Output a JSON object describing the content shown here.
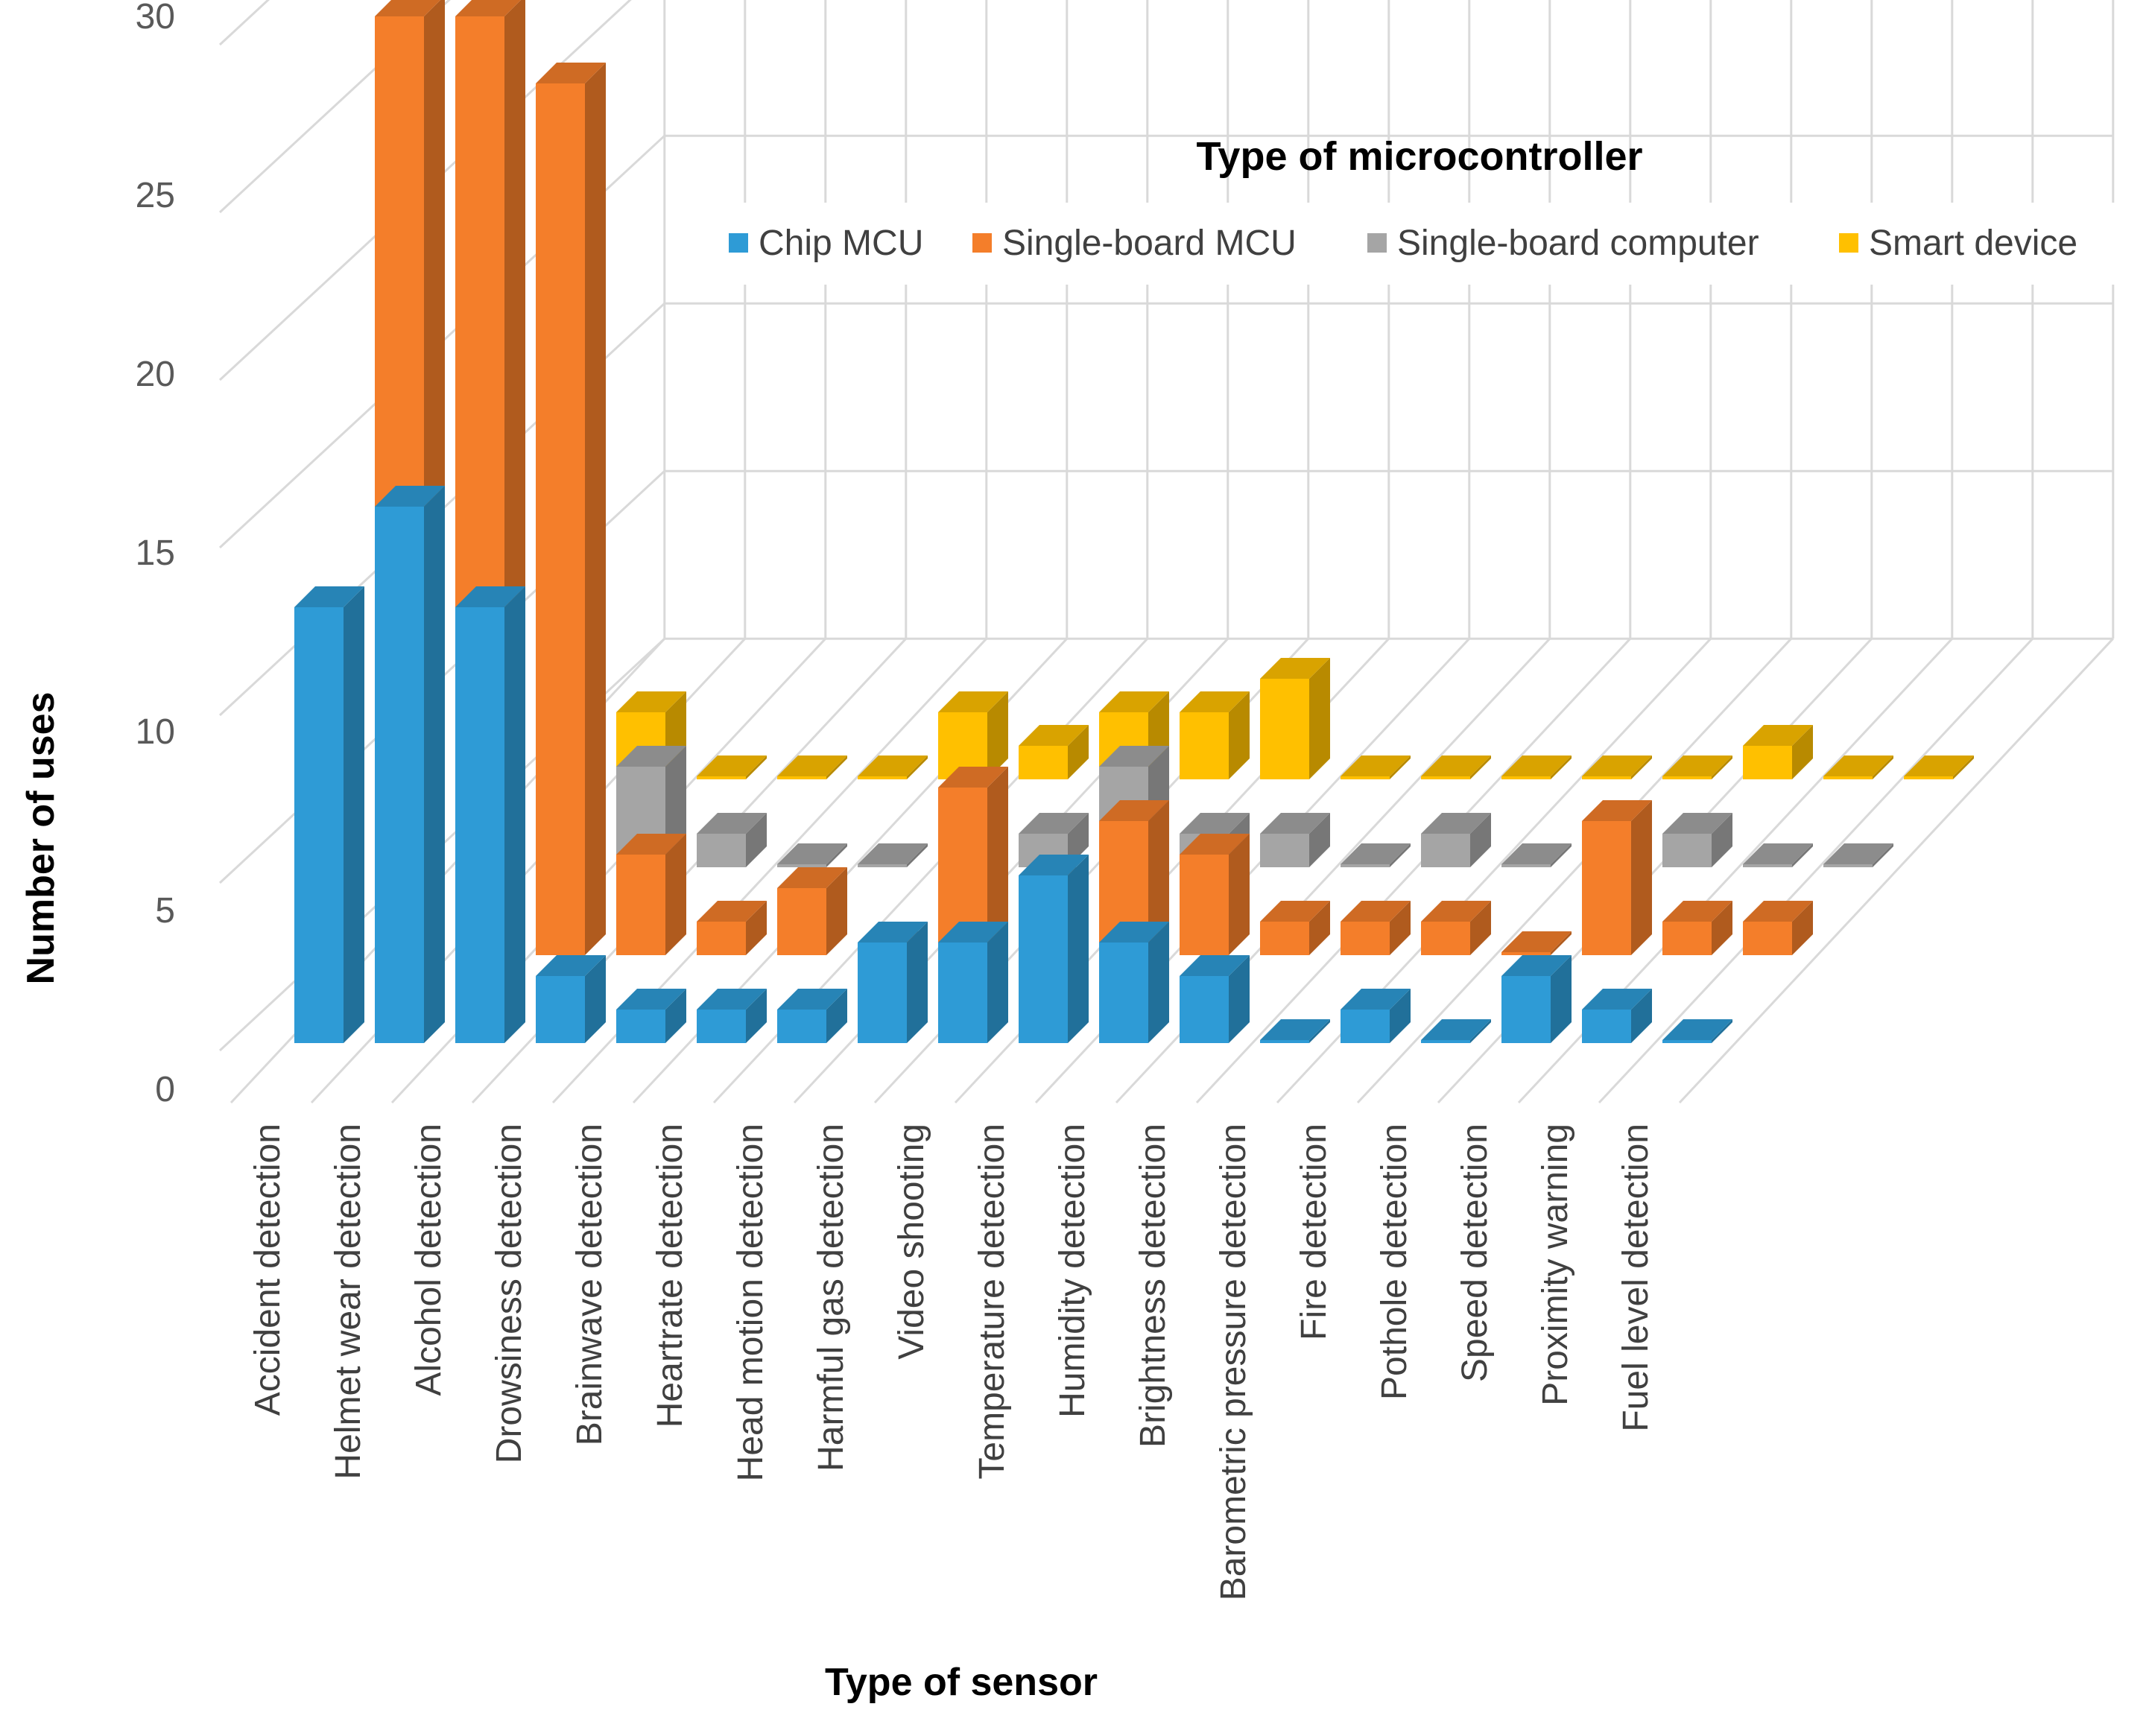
{
  "chart_data": {
    "type": "bar",
    "subtype": "3d-column",
    "title": "",
    "xlabel": "Type of sensor",
    "ylabel": "Number of uses",
    "ylim": [
      0,
      30
    ],
    "yticks": [
      0,
      5,
      10,
      15,
      20,
      25,
      30
    ],
    "grid": true,
    "legend": {
      "title": "Type of microcontroller",
      "position": "top-right"
    },
    "categories": [
      "Accident detection",
      "Helmet wear detection",
      "Alcohol detection",
      "Drowsiness detection",
      "Brainwave detection",
      "Heartrate detection",
      "Head motion detection",
      "Harmful gas detection",
      "Video shooting",
      "Temperature detection",
      "Humidity detection",
      "Brightness detection",
      "Barometric pressure detection",
      "Fire detection",
      "Pothole detection",
      "Speed detection",
      "Proximity warning",
      "Fuel level detection"
    ],
    "series": [
      {
        "name": "Chip MCU",
        "color": "#2e9bd6",
        "values": [
          13,
          16,
          13,
          2,
          1,
          1,
          1,
          3,
          3,
          5,
          3,
          2,
          0,
          1,
          0,
          2,
          1,
          0
        ]
      },
      {
        "name": "Single-board MCU",
        "color": "#f47e2a",
        "values": [
          28,
          28,
          26,
          3,
          1,
          2,
          0,
          5,
          2,
          4,
          3,
          1,
          1,
          1,
          0,
          4,
          1,
          1
        ]
      },
      {
        "name": "Single-board computer",
        "color": "#a5a5a5",
        "values": [
          5,
          2,
          3,
          1,
          0,
          0,
          0,
          1,
          3,
          1,
          1,
          0,
          1,
          0,
          0,
          1,
          0,
          0
        ]
      },
      {
        "name": "Smart device",
        "color": "#ffc000",
        "values": [
          3,
          2,
          0,
          0,
          0,
          2,
          1,
          2,
          2,
          3,
          0,
          0,
          0,
          0,
          0,
          1,
          0,
          0
        ]
      }
    ]
  }
}
